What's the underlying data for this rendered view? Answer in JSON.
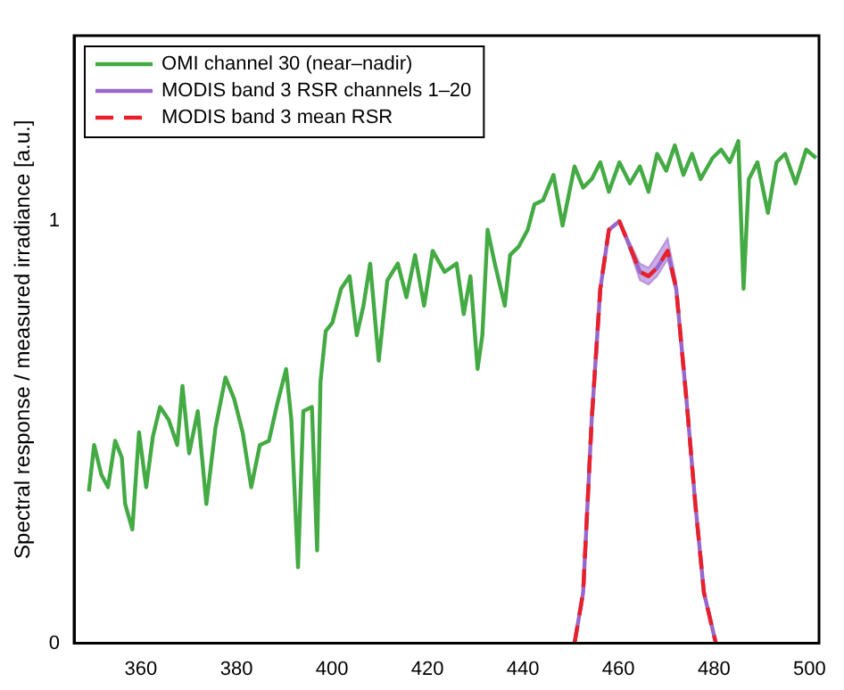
{
  "chart_data": {
    "type": "line",
    "ylabel": "Spectral response / measured irradiance [a.u.]",
    "xlim": [
      346,
      502
    ],
    "xticks": [
      360,
      380,
      400,
      420,
      440,
      460,
      480,
      500
    ],
    "ylim": [
      0,
      1.44
    ],
    "yticks": [
      0,
      1
    ],
    "grid": false,
    "legend": "top left",
    "marker": "none",
    "series": [
      {
        "name": "OMI channel 30 (near–nadir)",
        "color": "#44aa44",
        "line_style": "solid",
        "x": [
          349.1,
          350.2,
          351.7,
          353.1,
          354.6,
          356.0,
          356.7,
          358.2,
          359.6,
          361.1,
          362.5,
          364.0,
          365.8,
          367.6,
          368.7,
          370.1,
          371.9,
          373.7,
          375.6,
          377.7,
          379.5,
          381.3,
          383.1,
          384.9,
          386.8,
          388.6,
          390.4,
          391.5,
          392.9,
          394.0,
          395.8,
          396.9,
          397.6,
          398.7,
          400.1,
          401.9,
          403.7,
          405.2,
          406.6,
          408.0,
          409.8,
          411.6,
          413.8,
          415.6,
          417.4,
          419.3,
          421.1,
          423.6,
          426.1,
          427.6,
          429.0,
          430.5,
          431.5,
          432.6,
          434.1,
          436.2,
          437.3,
          439.1,
          441.0,
          442.4,
          444.2,
          446.4,
          448.3,
          450.8,
          452.6,
          454.4,
          456.2,
          458.0,
          460.2,
          462.4,
          464.5,
          466.3,
          468.1,
          470.0,
          471.8,
          473.6,
          475.4,
          477.2,
          479.7,
          481.5,
          483.3,
          485.1,
          486.2,
          487.3,
          489.1,
          491.3,
          493.1,
          494.9,
          497.1,
          499.3,
          501.4
        ],
        "values": [
          0.36,
          0.47,
          0.4,
          0.37,
          0.48,
          0.44,
          0.33,
          0.27,
          0.5,
          0.37,
          0.49,
          0.56,
          0.53,
          0.47,
          0.61,
          0.45,
          0.55,
          0.33,
          0.51,
          0.63,
          0.58,
          0.5,
          0.37,
          0.47,
          0.48,
          0.57,
          0.65,
          0.53,
          0.18,
          0.55,
          0.56,
          0.22,
          0.62,
          0.74,
          0.76,
          0.84,
          0.87,
          0.73,
          0.8,
          0.9,
          0.67,
          0.86,
          0.9,
          0.82,
          0.92,
          0.8,
          0.93,
          0.88,
          0.9,
          0.78,
          0.87,
          0.65,
          0.73,
          0.98,
          0.9,
          0.8,
          0.92,
          0.94,
          0.98,
          1.04,
          1.05,
          1.11,
          0.99,
          1.13,
          1.08,
          1.1,
          1.14,
          1.07,
          1.14,
          1.09,
          1.13,
          1.07,
          1.16,
          1.12,
          1.18,
          1.11,
          1.16,
          1.1,
          1.15,
          1.17,
          1.14,
          1.19,
          0.84,
          1.1,
          1.14,
          1.02,
          1.14,
          1.16,
          1.09,
          1.17,
          1.15
        ]
      },
      {
        "name": "MODIS band 3 RSR channels 1–20",
        "color": "#9966cc",
        "line_style": "solid",
        "x": [
          450.8,
          452.6,
          454.4,
          456.2,
          458.0,
          460.2,
          462.4,
          464.5,
          466.3,
          468.1,
          470.3,
          472.1,
          474.3,
          476.1,
          477.9,
          480.4
        ],
        "values": [
          0,
          0.12,
          0.53,
          0.84,
          0.98,
          1.0,
          0.94,
          0.88,
          0.87,
          0.89,
          0.93,
          0.84,
          0.57,
          0.33,
          0.12,
          0
        ],
        "lower": [
          0,
          0.12,
          0.53,
          0.84,
          0.98,
          1.0,
          0.93,
          0.86,
          0.85,
          0.87,
          0.91,
          0.83,
          0.57,
          0.33,
          0.12,
          0
        ],
        "upper": [
          0,
          0.12,
          0.53,
          0.84,
          0.98,
          1.0,
          0.95,
          0.9,
          0.89,
          0.92,
          0.96,
          0.86,
          0.58,
          0.33,
          0.12,
          0
        ]
      },
      {
        "name": "MODIS band 3 mean RSR",
        "color": "#e8202a",
        "line_style": "dashed",
        "x": [
          450.8,
          452.6,
          454.4,
          456.2,
          458.0,
          460.2,
          462.4,
          464.5,
          466.3,
          468.1,
          470.3,
          472.1,
          474.3,
          476.1,
          477.9,
          480.4
        ],
        "values": [
          0,
          0.12,
          0.53,
          0.84,
          0.98,
          1.0,
          0.94,
          0.88,
          0.87,
          0.89,
          0.93,
          0.84,
          0.57,
          0.33,
          0.12,
          0
        ]
      }
    ]
  }
}
